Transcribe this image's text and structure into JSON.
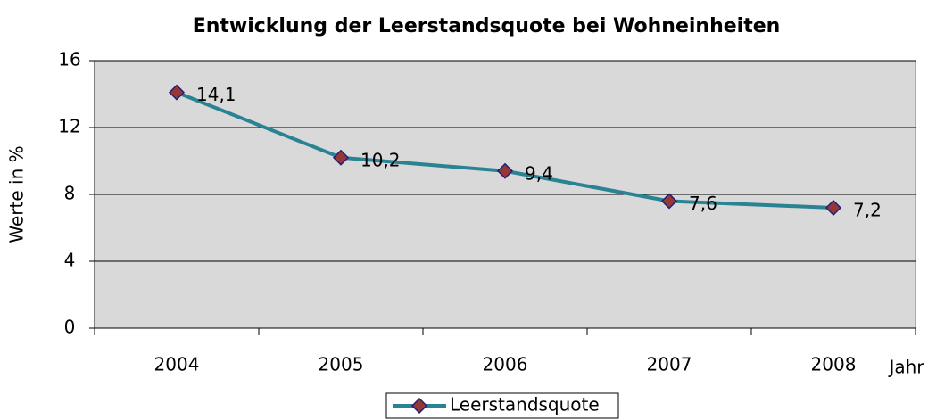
{
  "chart_data": {
    "type": "line",
    "title": "Entwicklung der Leerstandsquote bei Wohneinheiten",
    "x_label": "Jahr",
    "y_label": "Werte in %",
    "categories": [
      "2004",
      "2005",
      "2006",
      "2007",
      "2008"
    ],
    "series": [
      {
        "name": "Leerstandsquote",
        "color": "#2a8392",
        "marker_color": "#953735",
        "values": [
          14.1,
          10.2,
          9.4,
          7.6,
          7.2
        ],
        "value_labels": [
          "14,1",
          "10,2",
          "9,4",
          "7,6",
          "7,2"
        ]
      }
    ],
    "ylim": [
      0,
      16
    ],
    "yticks": [
      0,
      4,
      8,
      12,
      16
    ],
    "grid": true,
    "legend": "bottom"
  }
}
